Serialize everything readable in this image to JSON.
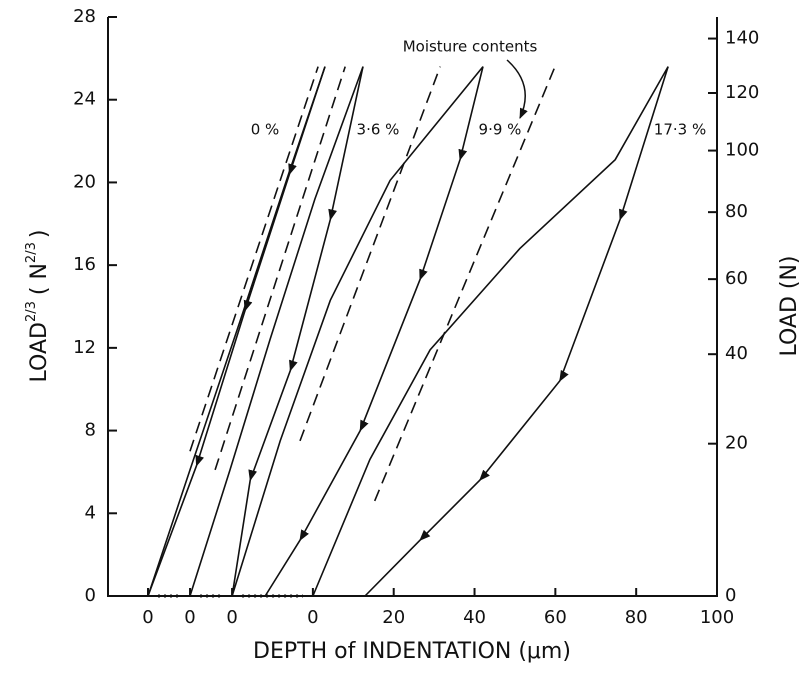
{
  "chart_data": {
    "type": "line",
    "ylabel_parts": [
      "LOAD",
      "2/3",
      "( N",
      "2/3",
      ")"
    ],
    "xlabel": "DEPTH of INDENTATION (μm)",
    "y2label": "LOAD (N)",
    "annotation": "Moisture contents",
    "xlim": [
      -50.7,
      100
    ],
    "xticks": [
      0,
      20,
      40,
      60,
      80,
      100
    ],
    "ylim": [
      0,
      28
    ],
    "yticks": [
      0,
      4,
      8,
      12,
      16,
      20,
      24,
      28
    ],
    "y2lim": [
      0,
      148.2
    ],
    "y2ticks": [
      0,
      20,
      40,
      60,
      80,
      100,
      120,
      140
    ],
    "y2scale": "power",
    "y2exponent": 0.6667,
    "color": "#111111",
    "series": [
      {
        "name": "0 %",
        "x_origin": -40.8,
        "xticks": [
          0
        ],
        "loading": {
          "x": [
            0,
            10.4,
            22.8,
            35.1,
            43.8
          ],
          "y": [
            0,
            6.1,
            13.3,
            20.6,
            25.6
          ]
        },
        "unloading": {
          "x": [
            43.8,
            35,
            24,
            12,
            0
          ],
          "y": [
            25.6,
            20.4,
            13.8,
            6.3,
            0
          ]
        },
        "extrapolation": {
          "x": [
            10.4,
            42.1
          ],
          "y": [
            7.0,
            25.6
          ]
        }
      },
      {
        "name": "3·6 %",
        "x_origin": -30.4,
        "xticks": [
          0
        ],
        "loading": {
          "x": [
            0,
            9.9,
            19.8,
            30.9,
            42.8
          ],
          "y": [
            0,
            6.1,
            12.4,
            19.2,
            25.6
          ]
        },
        "unloading": {
          "x": [
            42.8,
            34.7,
            24.8,
            14.9,
            10.4
          ],
          "y": [
            25.6,
            18.2,
            10.9,
            5.6,
            0
          ]
        },
        "extrapolation": {
          "x": [
            6.2,
            38.4
          ],
          "y": [
            6.1,
            25.6
          ]
        }
      },
      {
        "name": "9·9 %",
        "x_origin": -20.0,
        "xticks": [
          0
        ],
        "loading": {
          "x": [
            0,
            11.9,
            24.3,
            39.1,
            62.1
          ],
          "y": [
            0,
            7.5,
            14.3,
            20.1,
            25.6
          ]
        },
        "unloading": {
          "x": [
            62.1,
            56.4,
            46.5,
            31.7,
            16.8,
            8.2
          ],
          "y": [
            25.6,
            21.1,
            15.3,
            8.0,
            2.7,
            0
          ]
        },
        "extrapolation": {
          "x": [
            16.8,
            51.5
          ],
          "y": [
            7.5,
            25.6
          ]
        }
      },
      {
        "name": "17·3 %",
        "x_origin": 0,
        "loading": {
          "x": [
            0,
            14.1,
            29,
            51.2,
            74.8,
            87.9
          ],
          "y": [
            0,
            6.6,
            11.9,
            16.8,
            21.1,
            25.6
          ]
        },
        "unloading": {
          "x": [
            87.9,
            76,
            61.1,
            41.3,
            26.5,
            12.9
          ],
          "y": [
            25.6,
            18.2,
            10.4,
            5.6,
            2.7,
            0
          ]
        },
        "extrapolation": {
          "x": [
            15.3,
            59.9
          ],
          "y": [
            4.6,
            25.6
          ]
        }
      }
    ]
  }
}
